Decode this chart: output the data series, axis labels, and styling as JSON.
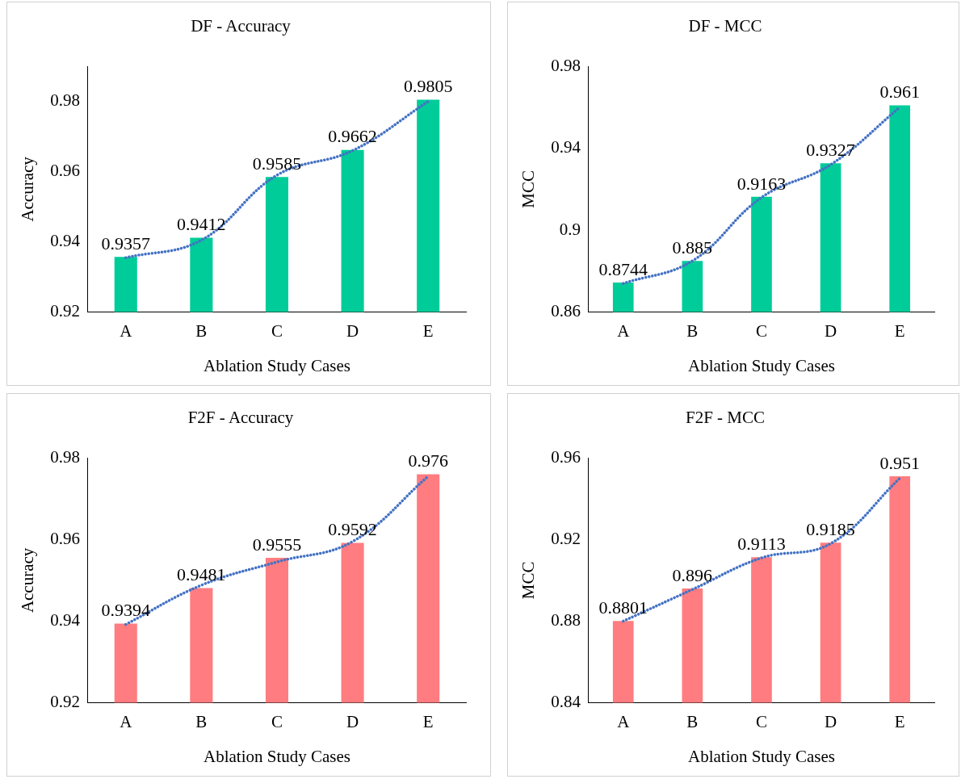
{
  "chart_data": [
    {
      "type": "bar",
      "title": "DF - Accuracy",
      "xlabel": "Ablation Study Cases",
      "ylabel": "Accuracy",
      "categories": [
        "A",
        "B",
        "C",
        "D",
        "E"
      ],
      "ylim": [
        0.92,
        0.99
      ],
      "yticks": [
        0.92,
        0.94,
        0.96,
        0.98
      ],
      "series": [
        {
          "color": "#00cc99",
          "values": [
            0.9357,
            0.9412,
            0.9585,
            0.9662,
            0.9805
          ],
          "value_labels": [
            "0.9357",
            "0.9412",
            "0.9585",
            "0.9662",
            "0.9805"
          ]
        },
        {
          "type": "line",
          "color": "#4472c4",
          "line_style": "dotted",
          "marker": "none",
          "values": [
            0.9355,
            0.9405,
            0.959,
            0.966,
            0.98
          ]
        }
      ]
    },
    {
      "type": "bar",
      "title": "DF - MCC",
      "xlabel": "Ablation Study Cases",
      "ylabel": "MCC",
      "categories": [
        "A",
        "B",
        "C",
        "D",
        "E"
      ],
      "ylim": [
        0.86,
        0.98
      ],
      "yticks": [
        0.86,
        0.9,
        0.94,
        0.98
      ],
      "series": [
        {
          "color": "#00cc99",
          "values": [
            0.8744,
            0.885,
            0.9163,
            0.9327,
            0.961
          ],
          "value_labels": [
            "0.8744",
            "0.885",
            "0.9163",
            "0.9327",
            "0.961"
          ]
        },
        {
          "type": "line",
          "color": "#4472c4",
          "line_style": "dotted",
          "marker": "none",
          "values": [
            0.874,
            0.885,
            0.916,
            0.932,
            0.96
          ]
        }
      ]
    },
    {
      "type": "bar",
      "title": "F2F - Accuracy",
      "xlabel": "Ablation Study Cases",
      "ylabel": "Accuracy",
      "categories": [
        "A",
        "B",
        "C",
        "D",
        "E"
      ],
      "ylim": [
        0.92,
        0.98
      ],
      "yticks": [
        0.92,
        0.94,
        0.96,
        0.98
      ],
      "series": [
        {
          "color": "#ff7c80",
          "values": [
            0.9394,
            0.9481,
            0.9555,
            0.9592,
            0.976
          ],
          "value_labels": [
            "0.9394",
            "0.9481",
            "0.9555",
            "0.9592",
            "0.976"
          ]
        },
        {
          "type": "line",
          "color": "#4472c4",
          "line_style": "dotted",
          "marker": "none",
          "values": [
            0.9392,
            0.9488,
            0.9545,
            0.9595,
            0.9755
          ]
        }
      ]
    },
    {
      "type": "bar",
      "title": "F2F - MCC",
      "xlabel": "Ablation Study Cases",
      "ylabel": "MCC",
      "categories": [
        "A",
        "B",
        "C",
        "D",
        "E"
      ],
      "ylim": [
        0.84,
        0.96
      ],
      "yticks": [
        0.84,
        0.88,
        0.92,
        0.96
      ],
      "series": [
        {
          "color": "#ff7c80",
          "values": [
            0.8801,
            0.896,
            0.9113,
            0.9185,
            0.951
          ],
          "value_labels": [
            "0.8801",
            "0.896",
            "0.9113",
            "0.9185",
            "0.951"
          ]
        },
        {
          "type": "line",
          "color": "#4472c4",
          "line_style": "dotted",
          "marker": "none",
          "values": [
            0.88,
            0.8955,
            0.911,
            0.918,
            0.95
          ]
        }
      ]
    }
  ]
}
